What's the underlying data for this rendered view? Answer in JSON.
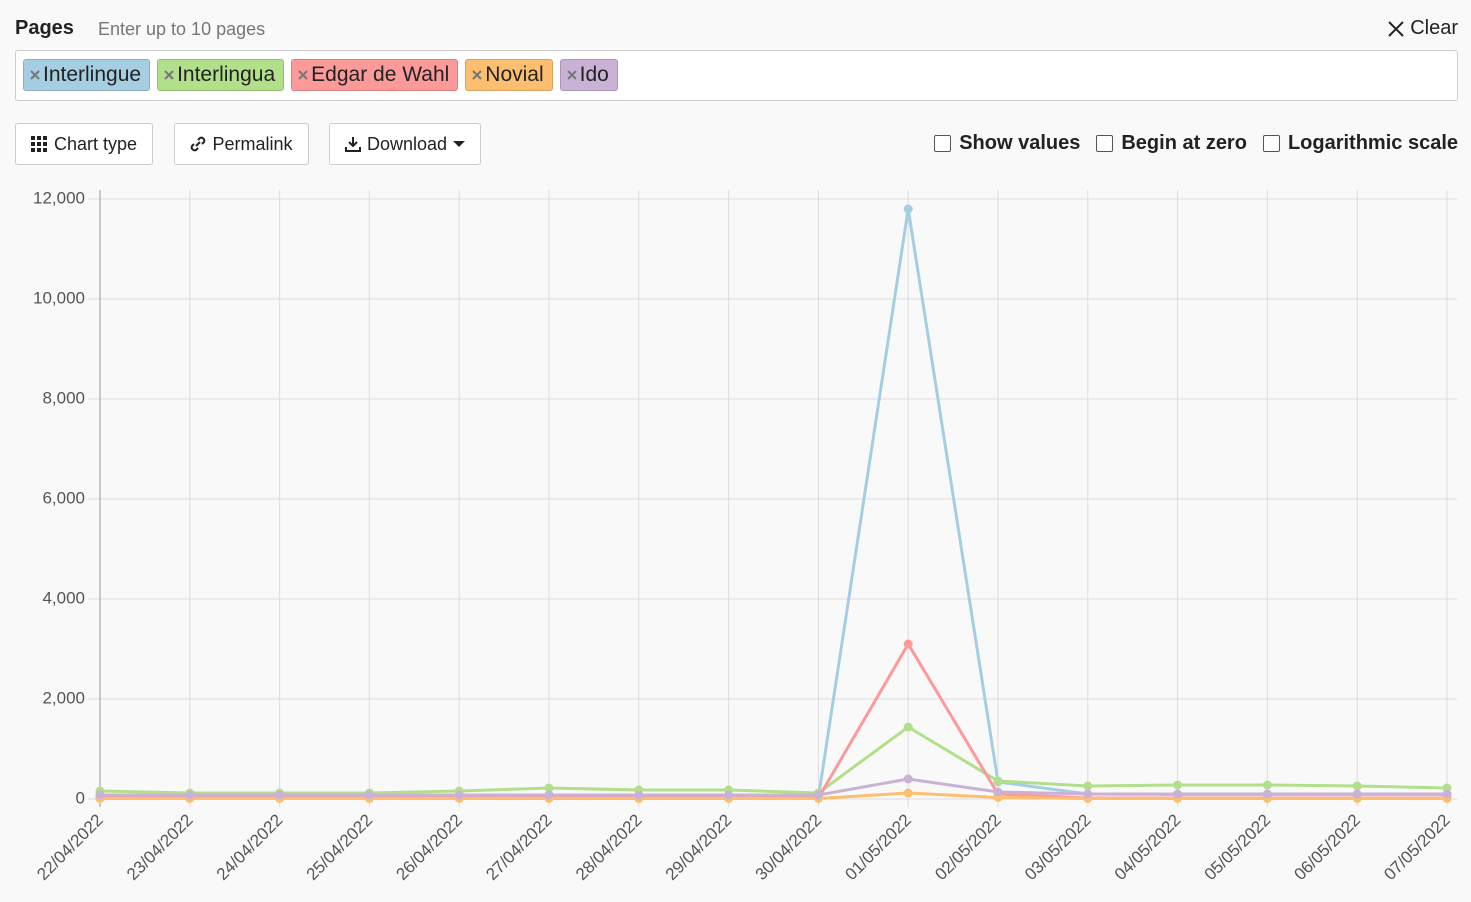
{
  "header": {
    "title": "Pages",
    "placeholder": "Enter up to 10 pages",
    "clear": "Clear"
  },
  "toolbar": {
    "buttons": [
      "Chart type",
      "Permalink",
      "Download"
    ],
    "checkboxes": [
      "Show values",
      "Begin at zero",
      "Logarithmic scale"
    ]
  },
  "chart_data": {
    "type": "line",
    "categories": [
      "22/04/2022",
      "23/04/2022",
      "24/04/2022",
      "25/04/2022",
      "26/04/2022",
      "27/04/2022",
      "28/04/2022",
      "29/04/2022",
      "30/04/2022",
      "01/05/2022",
      "02/05/2022",
      "03/05/2022",
      "04/05/2022",
      "05/05/2022",
      "06/05/2022",
      "07/05/2022"
    ],
    "series": [
      {
        "name": "Interlingue",
        "color": "#a6cee3",
        "values": [
          80,
          70,
          70,
          70,
          70,
          80,
          60,
          40,
          30,
          11800,
          340,
          100,
          90,
          90,
          90,
          90
        ]
      },
      {
        "name": "Interlingua",
        "color": "#b2df8a",
        "values": [
          160,
          120,
          120,
          120,
          160,
          220,
          180,
          180,
          120,
          1440,
          360,
          260,
          280,
          280,
          260,
          220
        ]
      },
      {
        "name": "Edgar de Wahl",
        "color": "#fb9a99",
        "values": [
          20,
          20,
          20,
          20,
          20,
          20,
          20,
          20,
          20,
          3100,
          100,
          20,
          20,
          20,
          20,
          20
        ]
      },
      {
        "name": "Novial",
        "color": "#fdbf6f",
        "values": [
          10,
          10,
          10,
          10,
          10,
          10,
          10,
          10,
          10,
          120,
          30,
          10,
          10,
          10,
          10,
          10
        ]
      },
      {
        "name": "Ido",
        "color": "#cab2d6",
        "values": [
          80,
          80,
          80,
          80,
          80,
          80,
          80,
          80,
          80,
          400,
          140,
          100,
          100,
          100,
          100,
          100
        ]
      }
    ],
    "ylim": [
      0,
      12000
    ],
    "yticks": [
      0,
      {
        "value": 2000,
        "label": "2,000"
      },
      {
        "value": 4000,
        "label": "4,000"
      },
      {
        "value": 6000,
        "label": "6,000"
      },
      {
        "value": 8000,
        "label": "8,000"
      },
      {
        "value": 10000,
        "label": "10,000"
      },
      {
        "value": 12000,
        "label": "12,000"
      }
    ],
    "grid": true
  }
}
